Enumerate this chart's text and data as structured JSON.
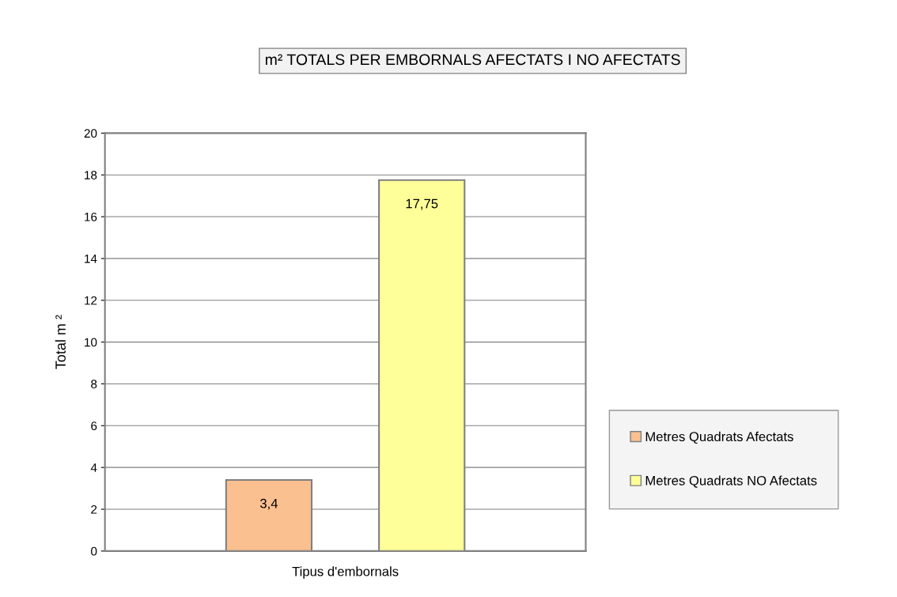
{
  "chart_data": {
    "type": "bar",
    "title": "m² TOTALS PER EMBORNALS AFECTATS I NO AFECTATS",
    "ylabel": "Total m ²",
    "categories": [
      "Tipus d'embornals"
    ],
    "series": [
      {
        "name": "Metres Quadrats Afectats",
        "color": "#fac090",
        "values": [
          3.4
        ],
        "value_labels": [
          "3,4"
        ]
      },
      {
        "name": "Metres Quadrats NO Afectats",
        "color": "#ffff99",
        "values": [
          17.75
        ],
        "value_labels": [
          "17,75"
        ]
      }
    ],
    "ylim": [
      0,
      20
    ],
    "yticks": [
      0,
      2,
      4,
      6,
      8,
      10,
      12,
      14,
      16,
      18,
      20
    ],
    "grid": "y",
    "legend": "right"
  }
}
